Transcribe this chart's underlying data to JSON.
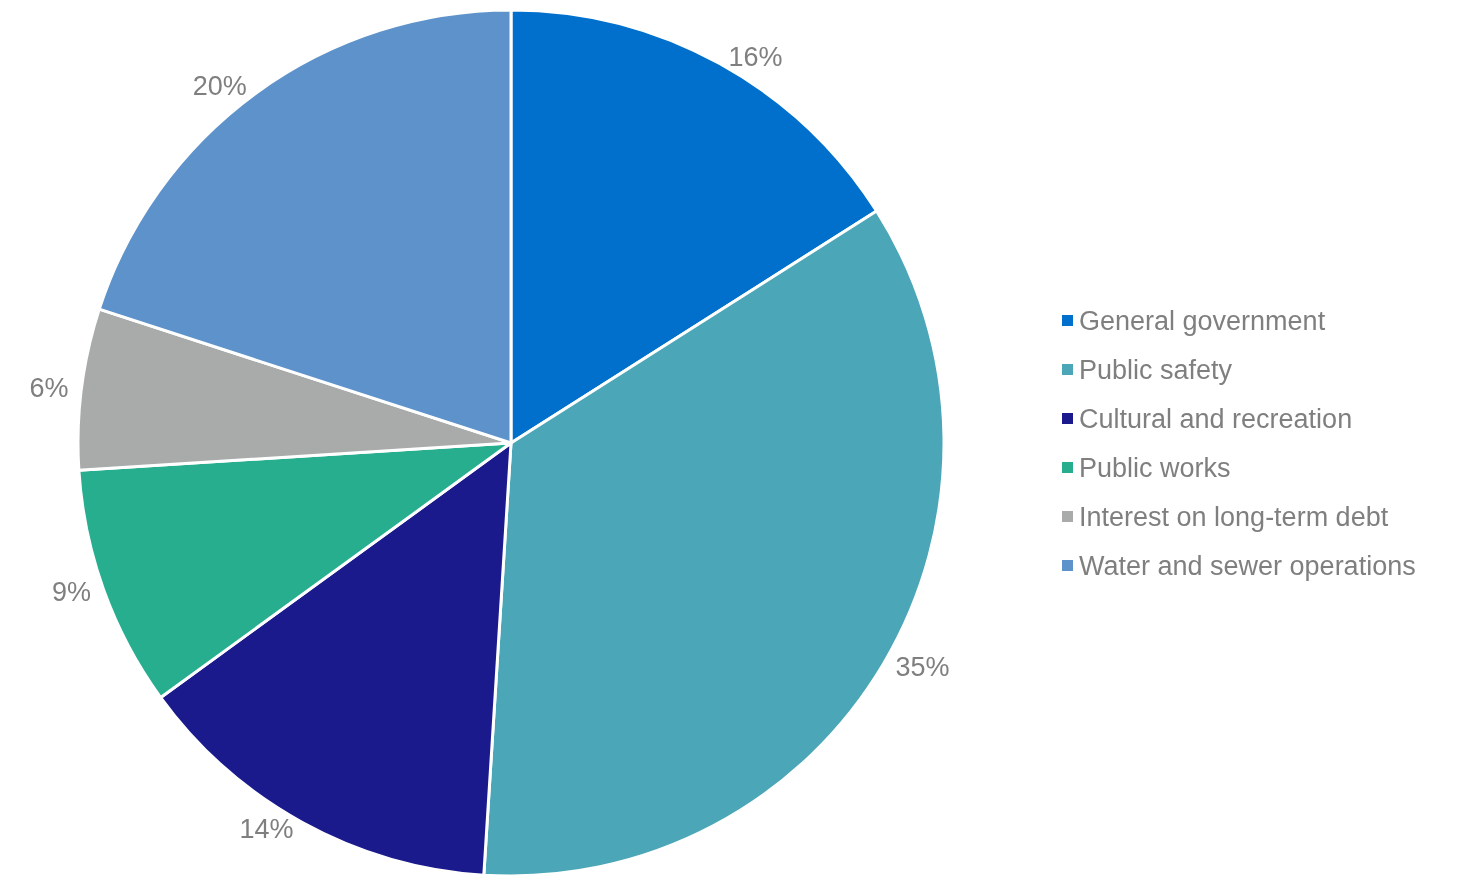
{
  "chart_data": {
    "type": "pie",
    "categories": [
      "General government",
      "Public safety",
      "Cultural and recreation",
      "Public works",
      "Interest on long-term debt",
      "Water and sewer operations"
    ],
    "values": [
      16,
      35,
      14,
      9,
      6,
      20
    ],
    "value_labels": [
      "16%",
      "35%",
      "14%",
      "9%",
      "6%",
      "20%"
    ],
    "colors": [
      "#0070cc",
      "#4ba6b7",
      "#1a1a8c",
      "#27ae8f",
      "#a9abab",
      "#5e92ca"
    ],
    "legend": "right"
  }
}
